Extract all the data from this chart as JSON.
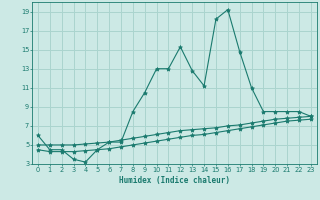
{
  "xlabel": "Humidex (Indice chaleur)",
  "background_color": "#cce9e5",
  "grid_color": "#aad4ce",
  "line_color": "#1a7a6e",
  "xlim": [
    -0.5,
    23.5
  ],
  "ylim": [
    3,
    20
  ],
  "yticks": [
    3,
    5,
    7,
    9,
    11,
    13,
    15,
    17,
    19
  ],
  "xticks": [
    0,
    1,
    2,
    3,
    4,
    5,
    6,
    7,
    8,
    9,
    10,
    11,
    12,
    13,
    14,
    15,
    16,
    17,
    18,
    19,
    20,
    21,
    22,
    23
  ],
  "series1_x": [
    0,
    1,
    2,
    3,
    4,
    5,
    6,
    7,
    8,
    9,
    10,
    11,
    12,
    13,
    14,
    15,
    16,
    17,
    18,
    19,
    20,
    21,
    22,
    23
  ],
  "series1_y": [
    6.0,
    4.5,
    4.5,
    3.5,
    3.2,
    4.5,
    5.3,
    5.3,
    8.5,
    10.5,
    13.0,
    13.0,
    15.3,
    12.8,
    11.2,
    18.2,
    19.2,
    14.8,
    11.0,
    8.5,
    8.5,
    8.5,
    8.5,
    8.0
  ],
  "series2_x": [
    0,
    1,
    2,
    3,
    4,
    5,
    6,
    7,
    8,
    9,
    10,
    11,
    12,
    13,
    14,
    15,
    16,
    17,
    18,
    19,
    20,
    21,
    22,
    23
  ],
  "series2_y": [
    4.5,
    4.3,
    4.3,
    4.3,
    4.4,
    4.5,
    4.6,
    4.8,
    5.0,
    5.2,
    5.4,
    5.6,
    5.8,
    6.0,
    6.1,
    6.3,
    6.5,
    6.7,
    6.9,
    7.1,
    7.3,
    7.5,
    7.6,
    7.7
  ],
  "series3_x": [
    0,
    1,
    2,
    3,
    4,
    5,
    6,
    7,
    8,
    9,
    10,
    11,
    12,
    13,
    14,
    15,
    16,
    17,
    18,
    19,
    20,
    21,
    22,
    23
  ],
  "series3_y": [
    5.0,
    5.0,
    5.0,
    5.0,
    5.1,
    5.2,
    5.3,
    5.5,
    5.7,
    5.9,
    6.1,
    6.3,
    6.5,
    6.6,
    6.7,
    6.8,
    7.0,
    7.1,
    7.3,
    7.5,
    7.7,
    7.8,
    7.9,
    8.0
  ]
}
